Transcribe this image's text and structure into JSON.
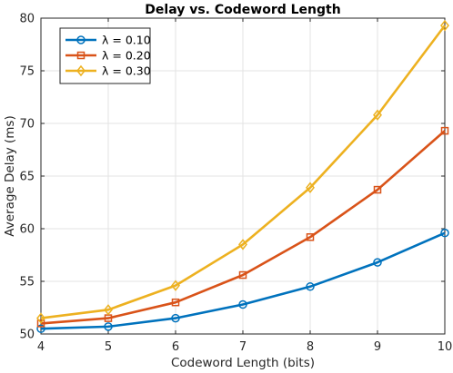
{
  "chart_data": {
    "type": "line",
    "title": "Delay vs. Codeword Length",
    "xlabel": "Codeword Length (bits)",
    "ylabel": "Average Delay (ms)",
    "xlim": [
      4,
      10
    ],
    "ylim": [
      50,
      80
    ],
    "xticks": [
      4,
      5,
      6,
      7,
      8,
      9,
      10
    ],
    "yticks": [
      50,
      55,
      60,
      65,
      70,
      75,
      80
    ],
    "grid": true,
    "legend_position": "top-left",
    "x": [
      4,
      5,
      6,
      7,
      8,
      9,
      10
    ],
    "series": [
      {
        "name": "λ = 0.10",
        "color": "#0072BD",
        "marker": "circle",
        "values": [
          50.5,
          50.7,
          51.5,
          52.8,
          54.5,
          56.8,
          59.6
        ]
      },
      {
        "name": "λ = 0.20",
        "color": "#D95319",
        "marker": "square",
        "values": [
          51.0,
          51.5,
          53.0,
          55.6,
          59.2,
          63.7,
          69.3
        ]
      },
      {
        "name": "λ = 0.30",
        "color": "#EDB120",
        "marker": "diamond",
        "values": [
          51.5,
          52.3,
          54.6,
          58.5,
          63.9,
          70.8,
          79.3
        ]
      }
    ]
  }
}
